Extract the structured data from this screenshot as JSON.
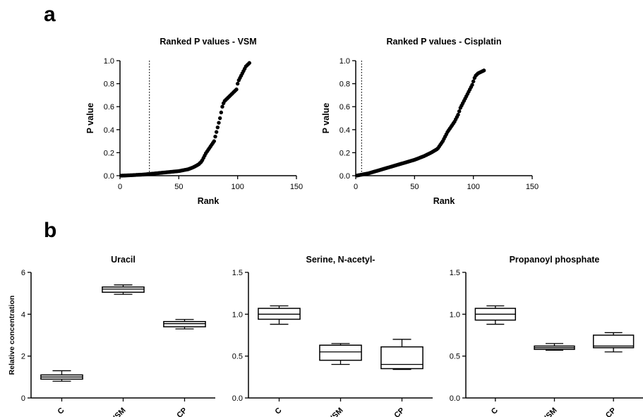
{
  "panel_labels": {
    "a": "a",
    "b": "b"
  },
  "chart_data": [
    {
      "type": "scatter",
      "title": "Ranked P values - VSM",
      "xlabel": "Rank",
      "ylabel": "P value",
      "xlim": [
        0,
        150
      ],
      "ylim": [
        0,
        1.0
      ],
      "xticks": [
        "0",
        "50",
        "100",
        "150"
      ],
      "yticks": [
        "0.0",
        "0.2",
        "0.4",
        "0.6",
        "0.8",
        "1.0"
      ],
      "threshold_rank": 25,
      "x": [
        1,
        2,
        3,
        4,
        5,
        6,
        7,
        8,
        9,
        10,
        11,
        12,
        13,
        14,
        15,
        16,
        17,
        18,
        19,
        20,
        21,
        22,
        23,
        24,
        25,
        26,
        27,
        28,
        29,
        30,
        31,
        32,
        33,
        34,
        35,
        36,
        37,
        38,
        39,
        40,
        41,
        42,
        43,
        44,
        45,
        46,
        47,
        48,
        49,
        50,
        51,
        52,
        53,
        54,
        55,
        56,
        57,
        58,
        59,
        60,
        61,
        62,
        63,
        64,
        65,
        66,
        67,
        68,
        69,
        70,
        71,
        72,
        73,
        74,
        75,
        76,
        77,
        78,
        79,
        80,
        81,
        82,
        83,
        84,
        85,
        86,
        87,
        88,
        89,
        90,
        91,
        92,
        93,
        94,
        95,
        96,
        97,
        98,
        99,
        100,
        101,
        102,
        103,
        104,
        105,
        106,
        107,
        108,
        109,
        110
      ],
      "y": [
        0.0003,
        0.0007,
        0.001,
        0.0015,
        0.002,
        0.0025,
        0.003,
        0.0035,
        0.004,
        0.0045,
        0.005,
        0.0055,
        0.006,
        0.007,
        0.0075,
        0.008,
        0.0085,
        0.009,
        0.0095,
        0.01,
        0.011,
        0.012,
        0.013,
        0.014,
        0.015,
        0.016,
        0.017,
        0.018,
        0.019,
        0.02,
        0.021,
        0.022,
        0.023,
        0.024,
        0.025,
        0.026,
        0.027,
        0.028,
        0.029,
        0.03,
        0.031,
        0.032,
        0.033,
        0.034,
        0.035,
        0.036,
        0.037,
        0.038,
        0.039,
        0.04,
        0.042,
        0.044,
        0.046,
        0.048,
        0.05,
        0.052,
        0.054,
        0.056,
        0.06,
        0.064,
        0.068,
        0.072,
        0.077,
        0.082,
        0.088,
        0.094,
        0.1,
        0.11,
        0.12,
        0.135,
        0.155,
        0.175,
        0.195,
        0.21,
        0.225,
        0.24,
        0.255,
        0.27,
        0.285,
        0.3,
        0.34,
        0.38,
        0.42,
        0.46,
        0.5,
        0.55,
        0.6,
        0.63,
        0.65,
        0.66,
        0.67,
        0.68,
        0.69,
        0.7,
        0.71,
        0.72,
        0.73,
        0.74,
        0.75,
        0.8,
        0.83,
        0.85,
        0.87,
        0.89,
        0.91,
        0.93,
        0.95,
        0.96,
        0.97,
        0.98
      ]
    },
    {
      "type": "scatter",
      "title": "Ranked P values - Cisplatin",
      "xlabel": "Rank",
      "ylabel": "P value",
      "xlim": [
        0,
        150
      ],
      "ylim": [
        0,
        1.0
      ],
      "xticks": [
        "0",
        "50",
        "100",
        "150"
      ],
      "yticks": [
        "0.0",
        "0.2",
        "0.4",
        "0.6",
        "0.8",
        "1.0"
      ],
      "threshold_rank": 5,
      "x": [
        1,
        2,
        3,
        4,
        5,
        6,
        7,
        8,
        9,
        10,
        11,
        12,
        13,
        14,
        15,
        16,
        17,
        18,
        19,
        20,
        21,
        22,
        23,
        24,
        25,
        26,
        27,
        28,
        29,
        30,
        31,
        32,
        33,
        34,
        35,
        36,
        37,
        38,
        39,
        40,
        41,
        42,
        43,
        44,
        45,
        46,
        47,
        48,
        49,
        50,
        51,
        52,
        53,
        54,
        55,
        56,
        57,
        58,
        59,
        60,
        61,
        62,
        63,
        64,
        65,
        66,
        67,
        68,
        69,
        70,
        71,
        72,
        73,
        74,
        75,
        76,
        77,
        78,
        79,
        80,
        81,
        82,
        83,
        84,
        85,
        86,
        87,
        88,
        89,
        90,
        91,
        92,
        93,
        94,
        95,
        96,
        97,
        98,
        99,
        100,
        101,
        102,
        103,
        104,
        105,
        106,
        107,
        108,
        109
      ],
      "y": [
        0.001,
        0.003,
        0.005,
        0.007,
        0.009,
        0.011,
        0.013,
        0.015,
        0.017,
        0.019,
        0.021,
        0.024,
        0.027,
        0.03,
        0.033,
        0.036,
        0.039,
        0.042,
        0.045,
        0.048,
        0.051,
        0.054,
        0.057,
        0.06,
        0.063,
        0.066,
        0.069,
        0.072,
        0.075,
        0.078,
        0.081,
        0.084,
        0.087,
        0.09,
        0.093,
        0.096,
        0.099,
        0.102,
        0.105,
        0.108,
        0.111,
        0.114,
        0.117,
        0.12,
        0.123,
        0.126,
        0.129,
        0.132,
        0.135,
        0.138,
        0.142,
        0.146,
        0.15,
        0.154,
        0.158,
        0.162,
        0.166,
        0.17,
        0.175,
        0.18,
        0.185,
        0.19,
        0.195,
        0.2,
        0.206,
        0.212,
        0.218,
        0.224,
        0.23,
        0.24,
        0.255,
        0.27,
        0.285,
        0.3,
        0.32,
        0.34,
        0.36,
        0.38,
        0.395,
        0.41,
        0.425,
        0.44,
        0.455,
        0.47,
        0.49,
        0.51,
        0.53,
        0.56,
        0.59,
        0.61,
        0.63,
        0.65,
        0.67,
        0.69,
        0.71,
        0.73,
        0.75,
        0.77,
        0.79,
        0.82,
        0.85,
        0.87,
        0.88,
        0.89,
        0.895,
        0.9,
        0.905,
        0.91,
        0.915
      ]
    },
    {
      "type": "box",
      "title": "Uracil",
      "ylabel": "Relative concentration",
      "categories": [
        "C",
        "VSM",
        "CP"
      ],
      "ylim": [
        0,
        6
      ],
      "yticks": [
        "0",
        "2",
        "4",
        "6"
      ],
      "boxes": [
        {
          "min": 0.8,
          "q1": 0.9,
          "median": 1.0,
          "q3": 1.1,
          "max": 1.3
        },
        {
          "min": 4.95,
          "q1": 5.05,
          "median": 5.2,
          "q3": 5.3,
          "max": 5.4
        },
        {
          "min": 3.3,
          "q1": 3.4,
          "median": 3.55,
          "q3": 3.65,
          "max": 3.75
        }
      ]
    },
    {
      "type": "box",
      "title": "Serine, N-acetyl-",
      "ylabel": "",
      "categories": [
        "C",
        "VSM",
        "CP"
      ],
      "ylim": [
        0,
        1.5
      ],
      "yticks": [
        "0.0",
        "0.5",
        "1.0",
        "1.5"
      ],
      "boxes": [
        {
          "min": 0.88,
          "q1": 0.94,
          "median": 1.0,
          "q3": 1.07,
          "max": 1.1
        },
        {
          "min": 0.4,
          "q1": 0.45,
          "median": 0.55,
          "q3": 0.63,
          "max": 0.65
        },
        {
          "min": 0.34,
          "q1": 0.35,
          "median": 0.4,
          "q3": 0.61,
          "max": 0.7
        }
      ]
    },
    {
      "type": "box",
      "title": "Propanoyl phosphate",
      "ylabel": "",
      "categories": [
        "C",
        "VSM",
        "CP"
      ],
      "ylim": [
        0,
        1.5
      ],
      "yticks": [
        "0.0",
        "0.5",
        "1.0",
        "1.5"
      ],
      "boxes": [
        {
          "min": 0.88,
          "q1": 0.93,
          "median": 1.0,
          "q3": 1.07,
          "max": 1.1
        },
        {
          "min": 0.57,
          "q1": 0.58,
          "median": 0.6,
          "q3": 0.62,
          "max": 0.65
        },
        {
          "min": 0.55,
          "q1": 0.6,
          "median": 0.62,
          "q3": 0.75,
          "max": 0.78
        }
      ]
    }
  ]
}
